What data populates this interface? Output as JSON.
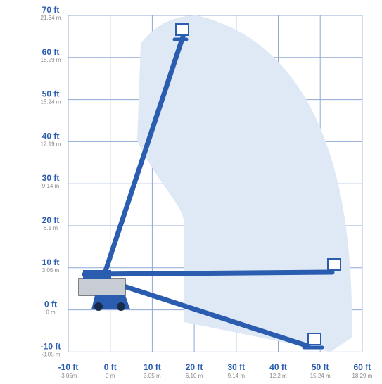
{
  "x_axis": [
    {
      "ft": "-10 ft",
      "m": "-3.05m"
    },
    {
      "ft": "0 ft",
      "m": "0 m"
    },
    {
      "ft": "10 ft",
      "m": "3.05 m"
    },
    {
      "ft": "20 ft",
      "m": "6.10 m"
    },
    {
      "ft": "30 ft",
      "m": "9.14 m"
    },
    {
      "ft": "40 ft",
      "m": "12.2 m"
    },
    {
      "ft": "50 ft",
      "m": "15.24 m"
    },
    {
      "ft": "60 ft",
      "m": "18.29 m"
    }
  ],
  "y_axis": [
    {
      "ft": "70 ft",
      "m": "21.34 m"
    },
    {
      "ft": "60 ft",
      "m": "18.29 m"
    },
    {
      "ft": "50 ft",
      "m": "15.24 m"
    },
    {
      "ft": "40 ft",
      "m": "12.19 m"
    },
    {
      "ft": "30 ft",
      "m": "9.14 m"
    },
    {
      "ft": "20 ft",
      "m": "6.1 m"
    },
    {
      "ft": "10 ft",
      "m": "3.05 m"
    },
    {
      "ft": "0 ft",
      "m": "0 m"
    },
    {
      "ft": "-10 ft",
      "m": "-3.05 m"
    }
  ]
}
